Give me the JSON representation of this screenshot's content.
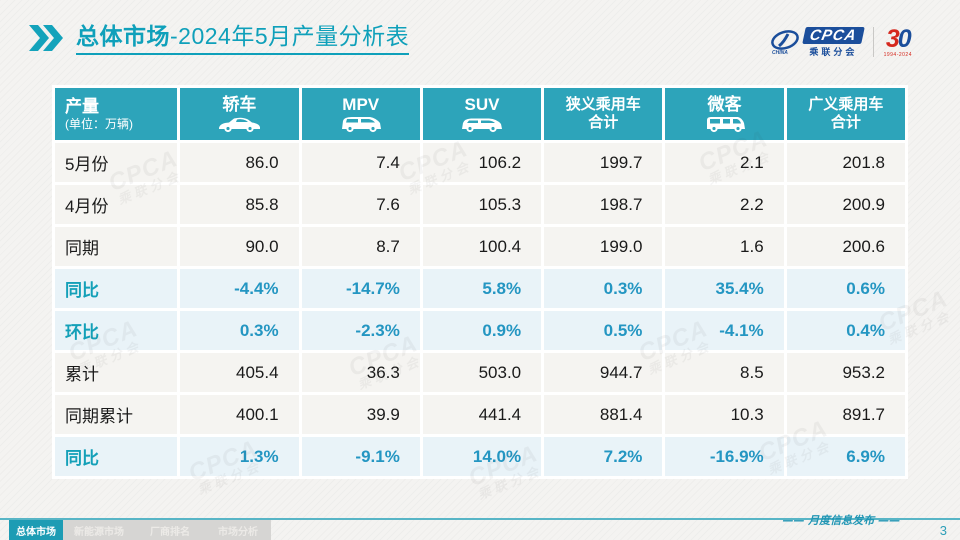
{
  "colors": {
    "accent_teal": "#0fa0ba",
    "header_bg": "#2da4ba",
    "pct_text": "#2496c2",
    "pct_row_bg": "#e9f3f8",
    "num_row_bg": "#f5f4f1",
    "logo_blue": "#1b4e9b",
    "logo_red": "#d5281e"
  },
  "title": {
    "bold": "总体市场",
    "rest": "-2024年5月产量分析表"
  },
  "logos": {
    "cpca": "CPCA",
    "cpca_sub": "乘联分会",
    "anniv_3": "3",
    "anniv_0": "0",
    "anniv_years": "1994-2024"
  },
  "watermark": {
    "line1": "CPCA",
    "line2": "乘联分会"
  },
  "table": {
    "header": {
      "col0_title": "产量",
      "col0_sub": "(单位：万辆)",
      "cols": [
        {
          "label": "轿车",
          "icon": "sedan-icon"
        },
        {
          "label": "MPV",
          "icon": "mpv-icon"
        },
        {
          "label": "SUV",
          "icon": "suv-icon"
        },
        {
          "label": "狭义乘用车",
          "label2": "合计"
        },
        {
          "label": "微客",
          "icon": "minibus-icon"
        },
        {
          "label": "广义乘用车",
          "label2": "合计"
        }
      ]
    },
    "rows": [
      {
        "label": "5月份",
        "type": "num",
        "values": [
          "86.0",
          "7.4",
          "106.2",
          "199.7",
          "2.1",
          "201.8"
        ]
      },
      {
        "label": "4月份",
        "type": "num",
        "values": [
          "85.8",
          "7.6",
          "105.3",
          "198.7",
          "2.2",
          "200.9"
        ]
      },
      {
        "label": "同期",
        "type": "num",
        "values": [
          "90.0",
          "8.7",
          "100.4",
          "199.0",
          "1.6",
          "200.6"
        ]
      },
      {
        "label": "同比",
        "type": "pct",
        "values": [
          "-4.4%",
          "-14.7%",
          "5.8%",
          "0.3%",
          "35.4%",
          "0.6%"
        ]
      },
      {
        "label": "环比",
        "type": "pct",
        "values": [
          "0.3%",
          "-2.3%",
          "0.9%",
          "0.5%",
          "-4.1%",
          "0.4%"
        ]
      },
      {
        "label": "累计",
        "type": "num",
        "values": [
          "405.4",
          "36.3",
          "503.0",
          "944.7",
          "8.5",
          "953.2"
        ]
      },
      {
        "label": "同期累计",
        "type": "num",
        "values": [
          "400.1",
          "39.9",
          "441.4",
          "881.4",
          "10.3",
          "891.7"
        ]
      },
      {
        "label": "同比",
        "type": "pct",
        "values": [
          "1.3%",
          "-9.1%",
          "14.0%",
          "7.2%",
          "-16.9%",
          "6.9%"
        ]
      }
    ]
  },
  "footer": {
    "tabs": [
      {
        "label": "总体市场",
        "active": true
      },
      {
        "label": "新能源市场",
        "active": false
      },
      {
        "label": "厂商排名",
        "active": false
      },
      {
        "label": "市场分析",
        "active": false
      }
    ],
    "publish": "—— 月度信息发布 ——",
    "page": "3"
  }
}
